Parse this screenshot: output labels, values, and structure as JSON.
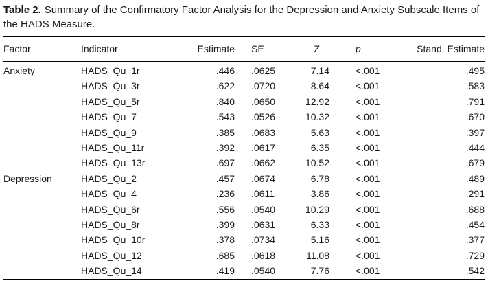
{
  "table": {
    "caption_label": "Table 2.",
    "caption_text": "Summary of the Confirmatory Factor Analysis for the Depression and Anxiety Subscale Items of the HADS Measure.",
    "columns": [
      "Factor",
      "Indicator",
      "Estimate",
      "SE",
      "Z",
      "p",
      "Stand. Estimate"
    ],
    "rows": [
      {
        "factor": "Anxiety",
        "indicator": "HADS_Qu_1r",
        "estimate": ".446",
        "se": ".0625",
        "z": "7.14",
        "p": "<.001",
        "stand": ".495"
      },
      {
        "factor": "",
        "indicator": "HADS_Qu_3r",
        "estimate": ".622",
        "se": ".0720",
        "z": "8.64",
        "p": "<.001",
        "stand": ".583"
      },
      {
        "factor": "",
        "indicator": "HADS_Qu_5r",
        "estimate": ".840",
        "se": ".0650",
        "z": "12.92",
        "p": "<.001",
        "stand": ".791"
      },
      {
        "factor": "",
        "indicator": "HADS_Qu_7",
        "estimate": ".543",
        "se": ".0526",
        "z": "10.32",
        "p": "<.001",
        "stand": ".670"
      },
      {
        "factor": "",
        "indicator": "HADS_Qu_9",
        "estimate": ".385",
        "se": ".0683",
        "z": "5.63",
        "p": "<.001",
        "stand": ".397"
      },
      {
        "factor": "",
        "indicator": "HADS_Qu_11r",
        "estimate": ".392",
        "se": ".0617",
        "z": "6.35",
        "p": "<.001",
        "stand": ".444"
      },
      {
        "factor": "",
        "indicator": "HADS_Qu_13r",
        "estimate": ".697",
        "se": ".0662",
        "z": "10.52",
        "p": "<.001",
        "stand": ".679"
      },
      {
        "factor": "Depression",
        "indicator": "HADS_Qu_2",
        "estimate": ".457",
        "se": ".0674",
        "z": "6.78",
        "p": "<.001",
        "stand": ".489"
      },
      {
        "factor": "",
        "indicator": "HADS_Qu_4",
        "estimate": ".236",
        "se": ".0611",
        "z": "3.86",
        "p": "<.001",
        "stand": ".291"
      },
      {
        "factor": "",
        "indicator": "HADS_Qu_6r",
        "estimate": ".556",
        "se": ".0540",
        "z": "10.29",
        "p": "<.001",
        "stand": ".688"
      },
      {
        "factor": "",
        "indicator": "HADS_Qu_8r",
        "estimate": ".399",
        "se": ".0631",
        "z": "6.33",
        "p": "<.001",
        "stand": ".454"
      },
      {
        "factor": "",
        "indicator": "HADS_Qu_10r",
        "estimate": ".378",
        "se": ".0734",
        "z": "5.16",
        "p": "<.001",
        "stand": ".377"
      },
      {
        "factor": "",
        "indicator": "HADS_Qu_12",
        "estimate": ".685",
        "se": ".0618",
        "z": "11.08",
        "p": "<.001",
        "stand": ".729"
      },
      {
        "factor": "",
        "indicator": "HADS_Qu_14",
        "estimate": ".419",
        "se": ".0540",
        "z": "7.76",
        "p": "<.001",
        "stand": ".542"
      }
    ]
  }
}
